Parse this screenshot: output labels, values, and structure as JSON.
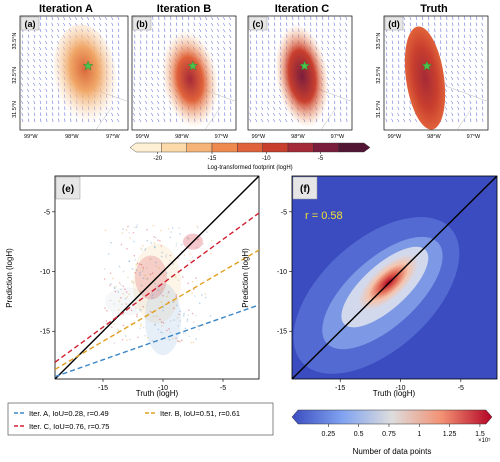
{
  "panel_titles": [
    "Iteration A",
    "Iteration B",
    "Iteration C",
    "Truth"
  ],
  "panel_tags": [
    "(a)",
    "(b)",
    "(c)",
    "(d)",
    "(e)",
    "(f)"
  ],
  "map_lat_ticks": [
    "33.5°N",
    "32.5°N",
    "31.5°N"
  ],
  "map_lon_ticks": [
    "99°W",
    "98°W",
    "97°W"
  ],
  "colorbar_top": {
    "label": "Log-transformed footprint (logH)",
    "ticks": [
      "-20",
      "-15",
      "-10",
      "-5"
    ],
    "colors": [
      "#fdf0d5",
      "#fbd9a9",
      "#f6b377",
      "#ee8a4e",
      "#e0623a",
      "#c93f2e",
      "#a52a37",
      "#7a1d3d",
      "#521634"
    ]
  },
  "legend": {
    "items": [
      {
        "label": "Iter. A, IoU=0.28, r=0.49",
        "color": "#3a86c8"
      },
      {
        "label": "Iter. B, IoU=0.51, r=0.61",
        "color": "#e0a020"
      },
      {
        "label": "Iter. C, IoU=0.76, r=0.75",
        "color": "#d12030"
      }
    ]
  },
  "panel_f_r": "r = 0.58",
  "colorbar_bottom": {
    "label": "Number of data points",
    "ticks": [
      "0.25",
      "0.5",
      "0.75",
      "1",
      "1.25",
      "1.5"
    ],
    "exponent": "×10⁵"
  },
  "chart_data": [
    {
      "type": "scatter",
      "panel": "e",
      "xlabel": "Truth (logH)",
      "ylabel": "Prediction (logH)",
      "xlim": [
        -19,
        -2
      ],
      "ylim": [
        -19,
        -2
      ],
      "xticks": [
        -15,
        -10,
        -5
      ],
      "yticks": [
        -15,
        -10,
        -5
      ],
      "series": [
        {
          "name": "Iter. A, IoU=0.28, r=0.49",
          "fit": [
            [
              -19,
              -18.8
            ],
            [
              -2,
              -12.8
            ]
          ]
        },
        {
          "name": "Iter. B, IoU=0.51, r=0.61",
          "fit": [
            [
              -19,
              -18.2
            ],
            [
              -2,
              -8.2
            ]
          ]
        },
        {
          "name": "Iter. C, IoU=0.76, r=0.75",
          "fit": [
            [
              -19,
              -17.6
            ],
            [
              -2,
              -5.1
            ]
          ]
        }
      ],
      "reference_line": "1:1"
    },
    {
      "type": "heatmap",
      "panel": "f",
      "xlabel": "Truth (logH)",
      "ylabel": "Prediction (logH)",
      "xlim": [
        -19,
        -2
      ],
      "ylim": [
        -19,
        -2
      ],
      "xticks": [
        -15,
        -10,
        -5
      ],
      "yticks": [
        -15,
        -10,
        -5
      ],
      "r": 0.58,
      "color_range": [
        0,
        150000
      ],
      "reference_line": "1:1"
    }
  ]
}
